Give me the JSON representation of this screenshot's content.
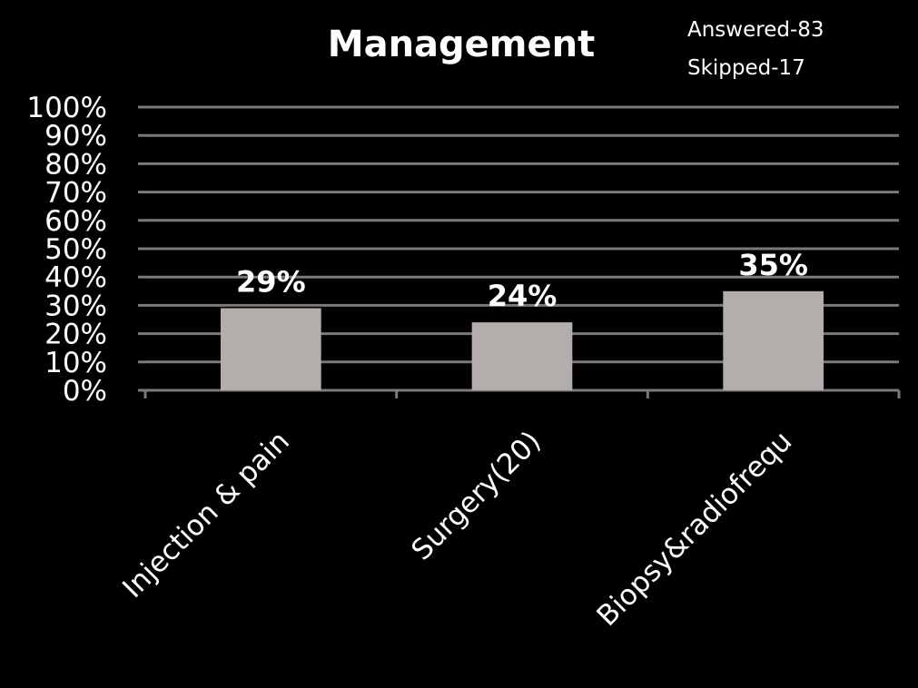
{
  "chart_data": {
    "type": "bar",
    "title": "Management",
    "annotations": [
      "Answered-83",
      "Skipped-17"
    ],
    "categories": [
      "Injection & pain",
      "Surgery(20)",
      "Biopsy&radiofrequ"
    ],
    "values": [
      29,
      24,
      35
    ],
    "data_labels": [
      "29%",
      "24%",
      "35%"
    ],
    "ylim": [
      0,
      100
    ],
    "yticks": [
      0,
      10,
      20,
      30,
      40,
      50,
      60,
      70,
      80,
      90,
      100
    ],
    "ytick_labels": [
      "0%",
      "10%",
      "20%",
      "30%",
      "40%",
      "50%",
      "60%",
      "70%",
      "80%",
      "90%",
      "100%"
    ],
    "xlabel": "",
    "ylabel": "",
    "grid": true,
    "legend": "none",
    "colors": {
      "background": "#000000",
      "bar": "#b3adab",
      "grid": "#7a7a7a",
      "text": "#ffffff"
    }
  }
}
